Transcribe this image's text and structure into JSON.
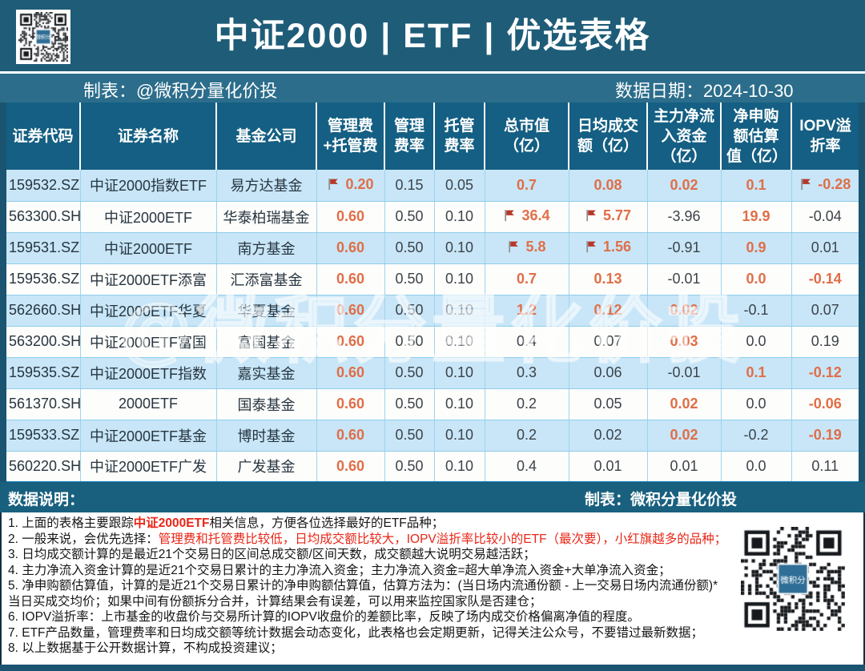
{
  "header": {
    "title": "中证2000 | ETF | 优选表格",
    "maker": "制表：@微积分量化价投",
    "date_label": "数据日期：2024-10-30"
  },
  "footer_bar": {
    "left": "数据说明：",
    "right": "制表：微积分量化价投"
  },
  "watermark": "@微积分量化价投",
  "qr_logo": "微积分",
  "colors": {
    "highlight_orange": "#E06E48",
    "flag_red": "#B5382A",
    "header_teal": "#145F83",
    "row_blue": "#C8E6F7",
    "note_red": "#E82616",
    "title_teal": "#1F5C78"
  },
  "chart_data": {
    "type": "table",
    "title": "中证2000 | ETF | 优选表格",
    "columns": [
      "证券代码",
      "证券名称",
      "基金公司",
      "管理费+托管费",
      "管理费率",
      "托管费率",
      "总市值（亿）",
      "日均成交额（亿）",
      "主力净流入资金（亿）",
      "净申购额估算值（亿）",
      "IOPV溢折率"
    ],
    "rows": [
      [
        {
          "v": "159532.SZ"
        },
        {
          "v": "中证2000指数ETF"
        },
        {
          "v": "易方达基金"
        },
        {
          "v": "0.20",
          "h": 1,
          "f": 1
        },
        {
          "v": "0.15"
        },
        {
          "v": "0.05"
        },
        {
          "v": "0.7",
          "h": 1
        },
        {
          "v": "0.08",
          "h": 1
        },
        {
          "v": "0.02",
          "h": 1
        },
        {
          "v": "0.1",
          "h": 1
        },
        {
          "v": "-0.28",
          "h": 1,
          "f": 1
        }
      ],
      [
        {
          "v": "563300.SH"
        },
        {
          "v": "中证2000ETF"
        },
        {
          "v": "华泰柏瑞基金"
        },
        {
          "v": "0.60",
          "h": 1
        },
        {
          "v": "0.50"
        },
        {
          "v": "0.10"
        },
        {
          "v": "36.4",
          "h": 1,
          "f": 1
        },
        {
          "v": "5.77",
          "h": 1,
          "f": 1
        },
        {
          "v": "-3.96"
        },
        {
          "v": "19.9",
          "h": 1
        },
        {
          "v": "-0.04"
        }
      ],
      [
        {
          "v": "159531.SZ"
        },
        {
          "v": "中证2000ETF"
        },
        {
          "v": "南方基金"
        },
        {
          "v": "0.60",
          "h": 1
        },
        {
          "v": "0.50"
        },
        {
          "v": "0.10"
        },
        {
          "v": "5.8",
          "h": 1,
          "f": 1
        },
        {
          "v": "1.56",
          "h": 1,
          "f": 1
        },
        {
          "v": "-0.91"
        },
        {
          "v": "0.9",
          "h": 1
        },
        {
          "v": "0.01"
        }
      ],
      [
        {
          "v": "159536.SZ"
        },
        {
          "v": "中证2000ETF添富"
        },
        {
          "v": "汇添富基金"
        },
        {
          "v": "0.60",
          "h": 1
        },
        {
          "v": "0.50"
        },
        {
          "v": "0.10"
        },
        {
          "v": "0.7",
          "h": 1
        },
        {
          "v": "0.13",
          "h": 1
        },
        {
          "v": "-0.01"
        },
        {
          "v": "0.0",
          "h": 1
        },
        {
          "v": "-0.14",
          "h": 1
        }
      ],
      [
        {
          "v": "562660.SH"
        },
        {
          "v": "中证2000ETF华夏"
        },
        {
          "v": "华夏基金"
        },
        {
          "v": "0.60",
          "h": 1
        },
        {
          "v": "0.50"
        },
        {
          "v": "0.10"
        },
        {
          "v": "1.2",
          "h": 1
        },
        {
          "v": "0.12",
          "h": 1
        },
        {
          "v": "0.02",
          "h": 1
        },
        {
          "v": "-0.1"
        },
        {
          "v": "0.07"
        }
      ],
      [
        {
          "v": "563200.SH"
        },
        {
          "v": "中证2000ETF富国"
        },
        {
          "v": "富国基金"
        },
        {
          "v": "0.60",
          "h": 1
        },
        {
          "v": "0.50"
        },
        {
          "v": "0.10"
        },
        {
          "v": "0.4"
        },
        {
          "v": "0.07"
        },
        {
          "v": "0.03",
          "h": 1
        },
        {
          "v": "0.0"
        },
        {
          "v": "0.19"
        }
      ],
      [
        {
          "v": "159535.SZ"
        },
        {
          "v": "中证2000ETF指数"
        },
        {
          "v": "嘉实基金"
        },
        {
          "v": "0.60",
          "h": 1
        },
        {
          "v": "0.50"
        },
        {
          "v": "0.10"
        },
        {
          "v": "0.3"
        },
        {
          "v": "0.06"
        },
        {
          "v": "-0.01"
        },
        {
          "v": "0.1",
          "h": 1
        },
        {
          "v": "-0.12",
          "h": 1
        }
      ],
      [
        {
          "v": "561370.SH"
        },
        {
          "v": "2000ETF"
        },
        {
          "v": "国泰基金"
        },
        {
          "v": "0.60",
          "h": 1
        },
        {
          "v": "0.50"
        },
        {
          "v": "0.10"
        },
        {
          "v": "0.2"
        },
        {
          "v": "0.05"
        },
        {
          "v": "0.02",
          "h": 1
        },
        {
          "v": "0.0"
        },
        {
          "v": "-0.06",
          "h": 1
        }
      ],
      [
        {
          "v": "159533.SZ"
        },
        {
          "v": "中证2000ETF基金"
        },
        {
          "v": "博时基金"
        },
        {
          "v": "0.60",
          "h": 1
        },
        {
          "v": "0.50"
        },
        {
          "v": "0.10"
        },
        {
          "v": "0.2"
        },
        {
          "v": "0.02"
        },
        {
          "v": "0.02",
          "h": 1
        },
        {
          "v": "-0.2"
        },
        {
          "v": "-0.19",
          "h": 1
        }
      ],
      [
        {
          "v": "560220.SH"
        },
        {
          "v": "中证2000ETF广发"
        },
        {
          "v": "广发基金"
        },
        {
          "v": "0.60",
          "h": 1
        },
        {
          "v": "0.50"
        },
        {
          "v": "0.10"
        },
        {
          "v": "0.4"
        },
        {
          "v": "0.01"
        },
        {
          "v": "0.01"
        },
        {
          "v": "0.0"
        },
        {
          "v": "0.11"
        }
      ]
    ]
  },
  "notes": [
    [
      {
        "t": "1. 上面的表格主要跟踪"
      },
      {
        "t": "中证2000ETF",
        "red": 1,
        "b": 1
      },
      {
        "t": "相关信息，方便各位选择最好的ETF品种；"
      }
    ],
    [
      {
        "t": "2. 一般来说，会优先选择："
      },
      {
        "t": "管理费和托管费比较低，日均成交额比较大，IOPV溢折率比较小的ETF（最次要），小红旗越多的品种；",
        "red": 1
      }
    ],
    [
      {
        "t": "3. 日均成交额计算的是最近21个交易日的区间总成交额/区间天数，成交额越大说明交易越活跃；"
      }
    ],
    [
      {
        "t": "4. 主力净流入资金计算的是近21个交易日累计的主力净流入资金；主力净流入资金=超大单净流入资金+大单净流入资金；"
      }
    ],
    [
      {
        "t": "5. 净申购额估算值，计算的是近21个交易日累计的净申购额估算值，估算方法为：(当日场内流通份额 - 上一交易日场内流通份额)* 当日买成交均价；如果中间有份额拆分合并，计算结果会有误差，可以用来监控国家队是否建仓；"
      }
    ],
    [
      {
        "t": "6. IOPV溢折率：上市基金的收盘价与交易所计算的IOPV收盘价的差额比率，反映了场内成交价格偏离净值的程度。"
      }
    ],
    [
      {
        "t": "7. ETF产品数量，管理费率和日均成交额等统计数据会动态变化，此表格也会定期更新，记得关注公众号，不要错过最新数据；"
      }
    ],
    [
      {
        "t": "8. 以上数据基于公开数据计算，不构成投资建议；"
      }
    ]
  ]
}
